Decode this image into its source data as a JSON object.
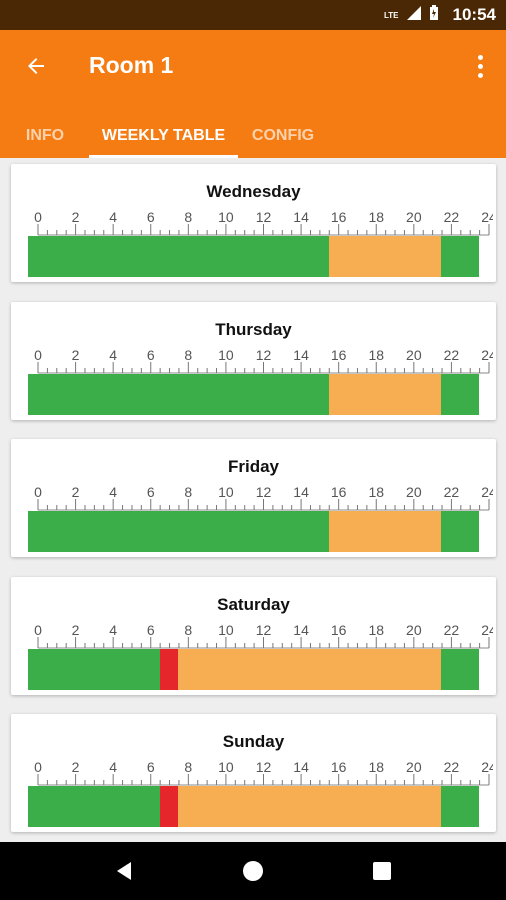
{
  "status_bar": {
    "time": "10:54",
    "network_label": "LTE"
  },
  "app_bar": {
    "title": "Room 1"
  },
  "tabs": [
    {
      "label": "INFO",
      "active": false
    },
    {
      "label": "WEEKLY TABLE",
      "active": true
    },
    {
      "label": "CONFIG",
      "active": false
    }
  ],
  "colors": {
    "green": "#3cae49",
    "orange": "#f7ad52",
    "red": "#e5262a",
    "accent": "#f57c13"
  },
  "ruler_labels": [
    "0",
    "2",
    "4",
    "6",
    "8",
    "10",
    "12",
    "14",
    "16",
    "18",
    "20",
    "22",
    "24"
  ],
  "days": [
    {
      "name": "Wednesday",
      "segments": [
        {
          "start": 0,
          "end": 16,
          "color": "green"
        },
        {
          "start": 16,
          "end": 22,
          "color": "orange"
        },
        {
          "start": 22,
          "end": 24,
          "color": "green"
        }
      ]
    },
    {
      "name": "Thursday",
      "segments": [
        {
          "start": 0,
          "end": 16,
          "color": "green"
        },
        {
          "start": 16,
          "end": 22,
          "color": "orange"
        },
        {
          "start": 22,
          "end": 24,
          "color": "green"
        }
      ]
    },
    {
      "name": "Friday",
      "segments": [
        {
          "start": 0,
          "end": 16,
          "color": "green"
        },
        {
          "start": 16,
          "end": 22,
          "color": "orange"
        },
        {
          "start": 22,
          "end": 24,
          "color": "green"
        }
      ]
    },
    {
      "name": "Saturday",
      "segments": [
        {
          "start": 0,
          "end": 7,
          "color": "green"
        },
        {
          "start": 7,
          "end": 8,
          "color": "red"
        },
        {
          "start": 8,
          "end": 22,
          "color": "orange"
        },
        {
          "start": 22,
          "end": 24,
          "color": "green"
        }
      ]
    },
    {
      "name": "Sunday",
      "segments": [
        {
          "start": 0,
          "end": 7,
          "color": "green"
        },
        {
          "start": 7,
          "end": 8,
          "color": "red"
        },
        {
          "start": 8,
          "end": 22,
          "color": "orange"
        },
        {
          "start": 22,
          "end": 24,
          "color": "green"
        }
      ]
    }
  ],
  "nav": {
    "back_icon": "triangle-back-icon",
    "home_icon": "circle-home-icon",
    "recents_icon": "square-recents-icon"
  }
}
